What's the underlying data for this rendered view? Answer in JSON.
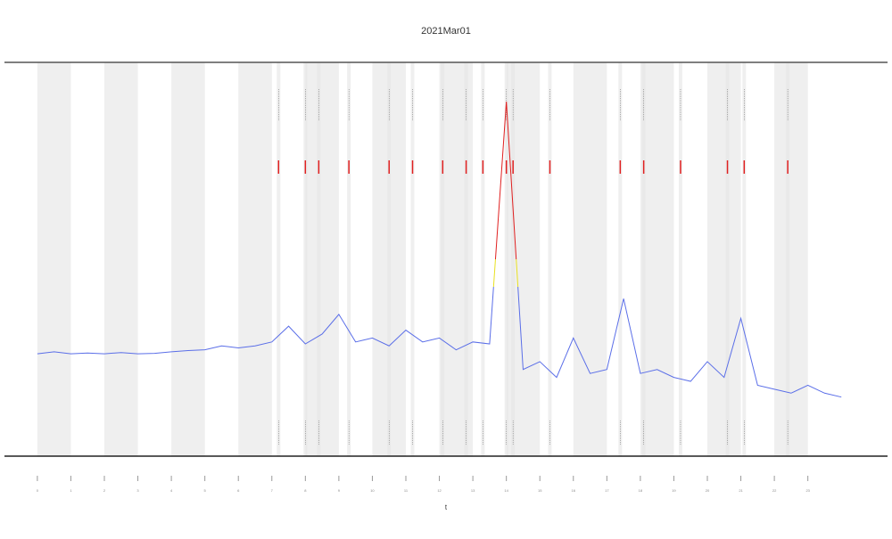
{
  "chart_data": {
    "type": "line",
    "title": "2021Mar01",
    "x_label": "t",
    "x": [
      0,
      0.5,
      1,
      1.5,
      2,
      2.5,
      3,
      3.5,
      4,
      4.5,
      5,
      5.5,
      6,
      6.5,
      7,
      7.5,
      8,
      8.5,
      9,
      9.5,
      10,
      10.5,
      11,
      11.5,
      12,
      12.5,
      13,
      13.5,
      14,
      14.5,
      15,
      15.5,
      16,
      16.5,
      17,
      17.5,
      18,
      18.5,
      19,
      19.5,
      20,
      20.5,
      21,
      21.5,
      22,
      22.5,
      23,
      23.5,
      24
    ],
    "series": [
      {
        "color": "#5a6ee8",
        "values": [
          26,
          26.5,
          26,
          26.2,
          26,
          26.3,
          26,
          26.1,
          26.5,
          26.8,
          27,
          28,
          27.5,
          28,
          29,
          33,
          28.5,
          31,
          36,
          29,
          30,
          28,
          32,
          29,
          30,
          27,
          29,
          28.5,
          90,
          22,
          24,
          20,
          30,
          21,
          22,
          40,
          21,
          22,
          20,
          19,
          24,
          20,
          35,
          18,
          17,
          16,
          18,
          16,
          15
        ]
      }
    ],
    "color_zones": [
      {
        "from": 0,
        "to": 43,
        "color": "#5a6ee8"
      },
      {
        "from": 43,
        "to": 50,
        "color": "#e8e020"
      },
      {
        "from": 50,
        "to": 100,
        "color": "#e02020"
      }
    ],
    "events": [
      7.2,
      8,
      8.4,
      9.3,
      10.5,
      11.2,
      12.1,
      12.8,
      13.3,
      14,
      14.2,
      15.3,
      17.4,
      18.1,
      19.2,
      20.6,
      21.1,
      22.4
    ],
    "event_color": "#e02020",
    "xlim": [
      -0.05,
      24.5
    ],
    "xticks": [
      0,
      1,
      2,
      3,
      4,
      5,
      6,
      7,
      8,
      9,
      10,
      11,
      12,
      13,
      14,
      15,
      16,
      17,
      18,
      19,
      20,
      21,
      22,
      23
    ],
    "ylim": [
      0,
      100
    ]
  }
}
